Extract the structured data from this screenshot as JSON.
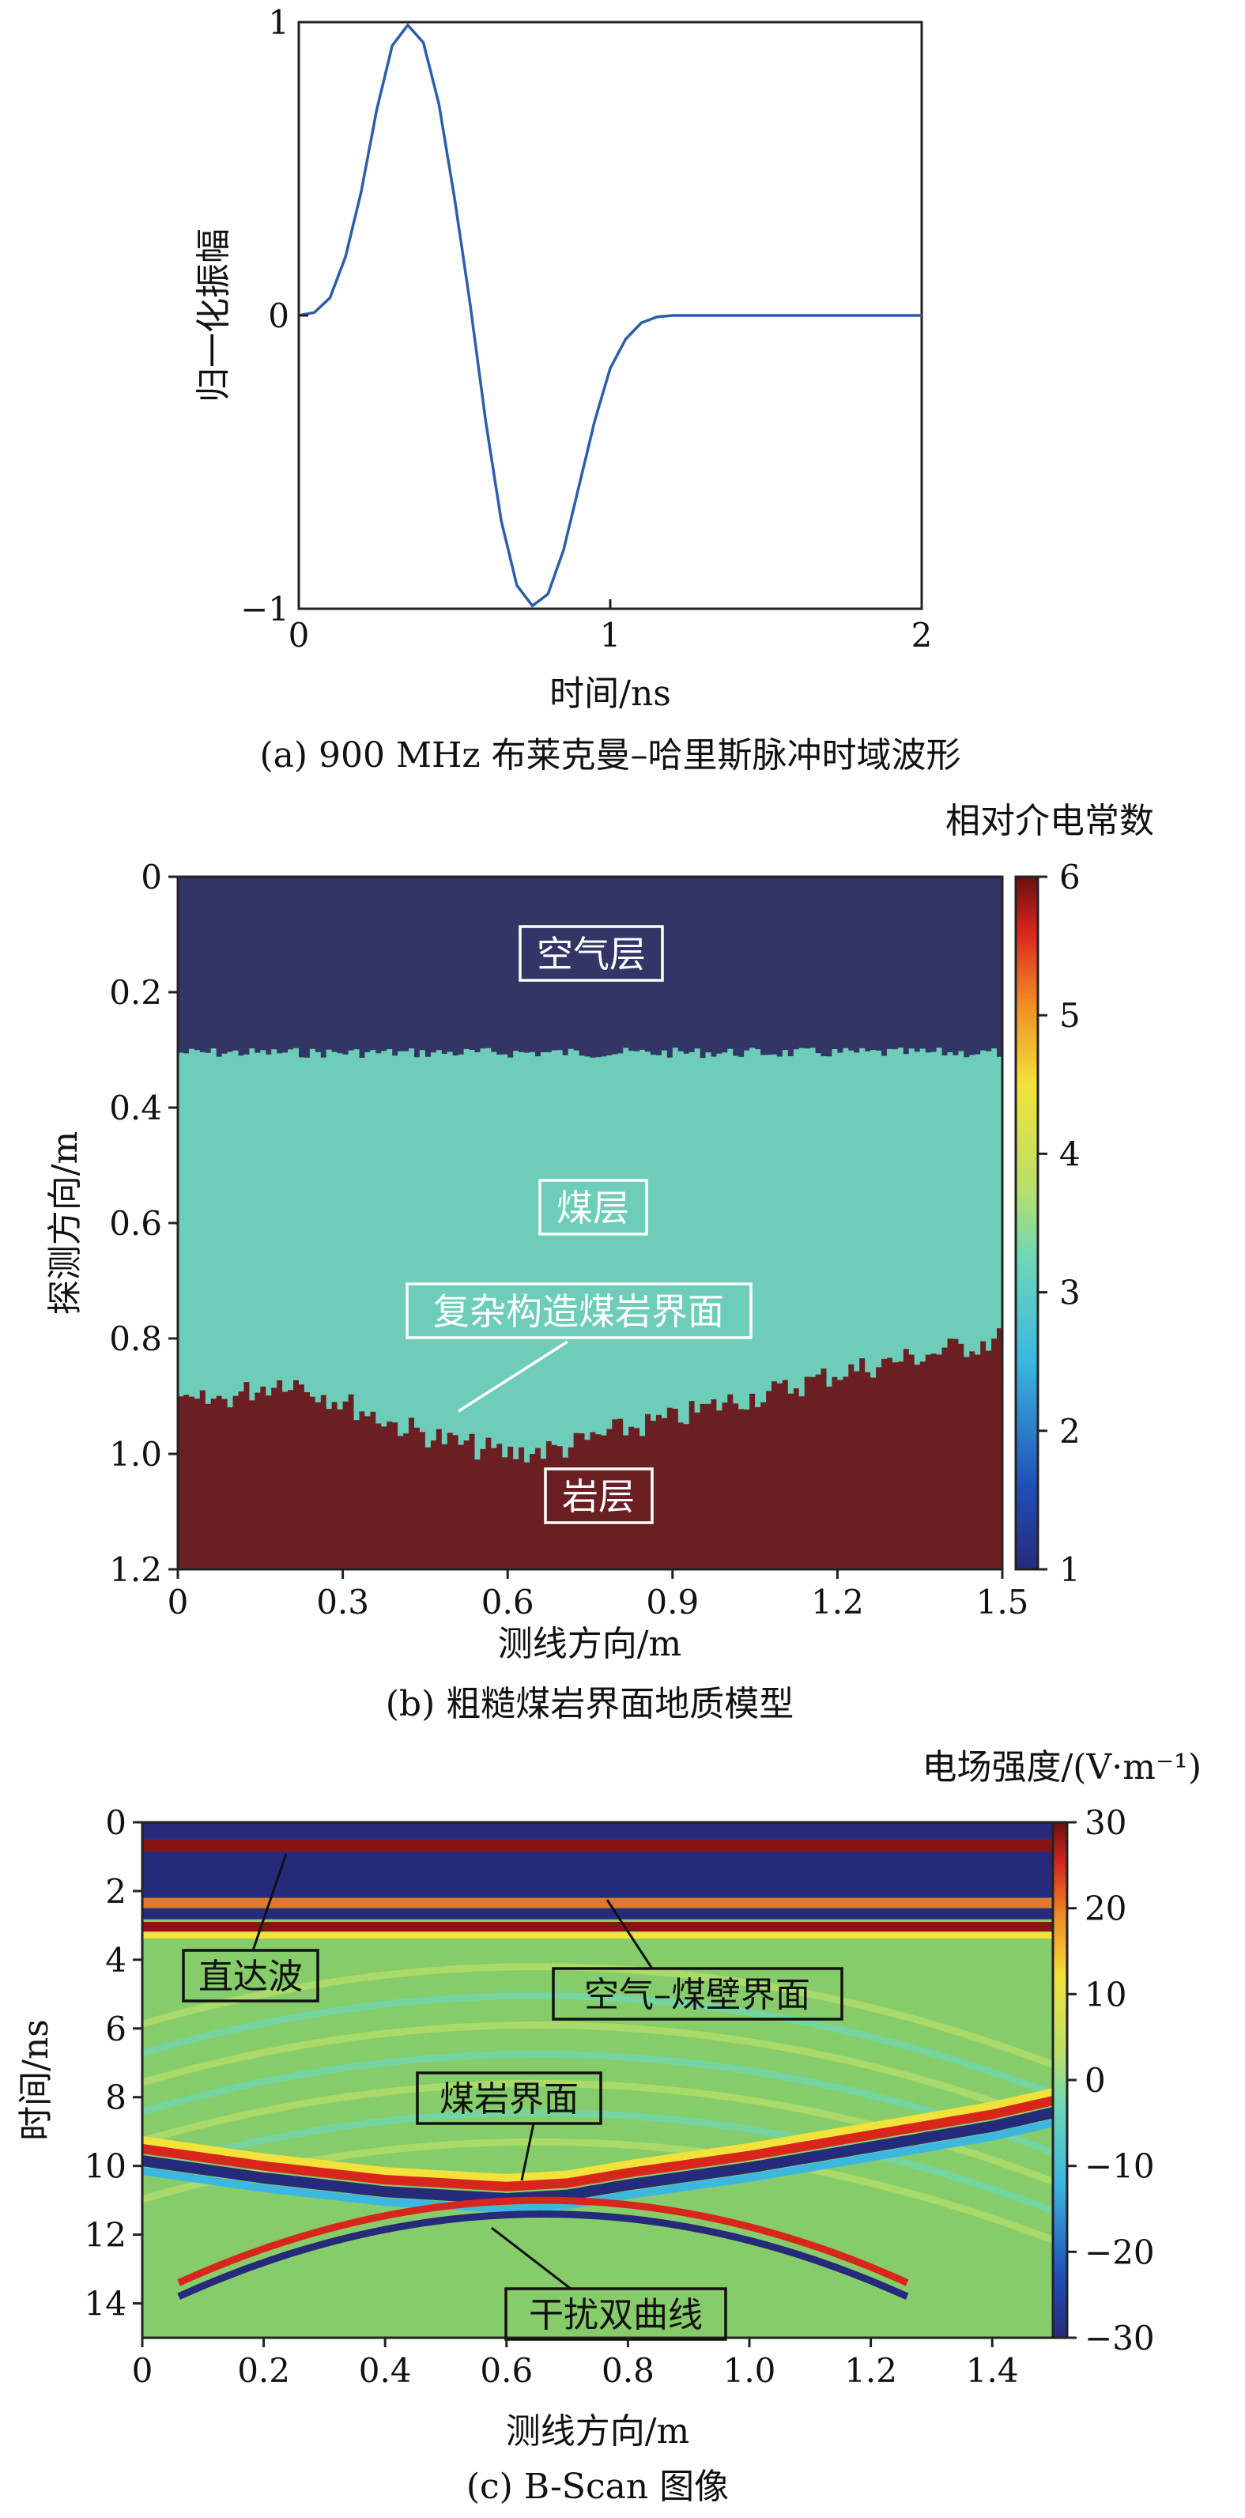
{
  "chart_data": [
    {
      "type": "line",
      "caption": "(a) 900 MHz 布莱克曼–哈里斯脉冲时域波形",
      "xlabel": "时间/ns",
      "ylabel": "归一化振幅",
      "xlim": [
        0,
        2
      ],
      "ylim": [
        -1,
        1
      ],
      "xticks": [
        "0",
        "1",
        "2"
      ],
      "yticks": [
        "−1",
        "0",
        "1"
      ],
      "grid": false,
      "series": [
        {
          "color": "#2b5fa8",
          "x": [
            0,
            0.05,
            0.1,
            0.15,
            0.2,
            0.25,
            0.3,
            0.35,
            0.4,
            0.45,
            0.5,
            0.55,
            0.6,
            0.65,
            0.7,
            0.75,
            0.8,
            0.85,
            0.9,
            0.95,
            1.0,
            1.05,
            1.1,
            1.15,
            1.2,
            1.25,
            1.3,
            1.4,
            1.5,
            1.6,
            1.8,
            2.0
          ],
          "y": [
            0,
            0.01,
            0.06,
            0.2,
            0.42,
            0.7,
            0.92,
            0.99,
            0.93,
            0.72,
            0.4,
            0.04,
            -0.36,
            -0.7,
            -0.92,
            -0.99,
            -0.95,
            -0.8,
            -0.58,
            -0.36,
            -0.18,
            -0.08,
            -0.025,
            -0.005,
            0,
            0,
            0,
            0,
            0,
            0,
            0,
            0
          ]
        }
      ]
    },
    {
      "type": "heatmap",
      "caption": "(b) 粗糙煤岩界面地质模型",
      "xlabel": "测线方向/m",
      "ylabel": "探测方向/m",
      "colorbar_label": "相对介电常数",
      "xlim": [
        0,
        1.5
      ],
      "ylim": [
        1.2,
        0
      ],
      "xticks": [
        "0",
        "0.3",
        "0.6",
        "0.9",
        "1.2",
        "1.5"
      ],
      "yticks": [
        "0",
        "0.2",
        "0.4",
        "0.6",
        "0.8",
        "1.0",
        "1.2"
      ],
      "colorbar_range": [
        1,
        6
      ],
      "colorbar_ticks": [
        "1",
        "2",
        "3",
        "4",
        "5",
        "6"
      ],
      "layers": [
        {
          "name": "空气层",
          "permittivity": 1,
          "color": "#333566"
        },
        {
          "name": "煤层",
          "permittivity": 3,
          "color": "#6ecdb9"
        },
        {
          "name": "岩层",
          "permittivity": 6,
          "color": "#6b1f22"
        }
      ],
      "air_coal_depth": 0.305,
      "coal_rock_interface": {
        "x": [
          0,
          0.1,
          0.2,
          0.3,
          0.4,
          0.5,
          0.6,
          0.7,
          0.8,
          0.9,
          1.0,
          1.1,
          1.2,
          1.3,
          1.4,
          1.5
        ],
        "depth": [
          0.92,
          0.9,
          0.87,
          0.91,
          0.95,
          0.98,
          1.0,
          0.99,
          0.96,
          0.94,
          0.91,
          0.89,
          0.86,
          0.84,
          0.82,
          0.8
        ]
      },
      "annotations": [
        "空气层",
        "煤层",
        "复杂构造煤岩界面",
        "岩层"
      ]
    },
    {
      "type": "heatmap",
      "caption": "(c) B-Scan 图像",
      "xlabel": "测线方向/m",
      "ylabel": "时间/ns",
      "colorbar_label": "电场强度/(V·m⁻¹)",
      "xlim": [
        0,
        1.5
      ],
      "ylim": [
        15,
        0
      ],
      "xticks": [
        "0",
        "0.2",
        "0.4",
        "0.6",
        "0.8",
        "1.0",
        "1.2",
        "1.4"
      ],
      "yticks": [
        "0",
        "2",
        "4",
        "6",
        "8",
        "10",
        "12",
        "14"
      ],
      "colorbar_range": [
        -30,
        30
      ],
      "colorbar_ticks": [
        "30",
        "20",
        "10",
        "0",
        "−10",
        "−20",
        "−30"
      ],
      "direct_wave_time": 0.6,
      "air_coal_reflection_time": 2.5,
      "coal_rock_reflection": {
        "x": [
          0,
          0.2,
          0.4,
          0.6,
          0.7,
          0.8,
          1.0,
          1.2,
          1.4,
          1.5
        ],
        "t": [
          9.8,
          10.3,
          10.7,
          10.9,
          10.8,
          10.5,
          10.0,
          9.4,
          8.8,
          8.4
        ]
      },
      "annotations": [
        "直达波",
        "空气–煤壁界面",
        "煤岩界面",
        "干扰双曲线"
      ]
    }
  ]
}
